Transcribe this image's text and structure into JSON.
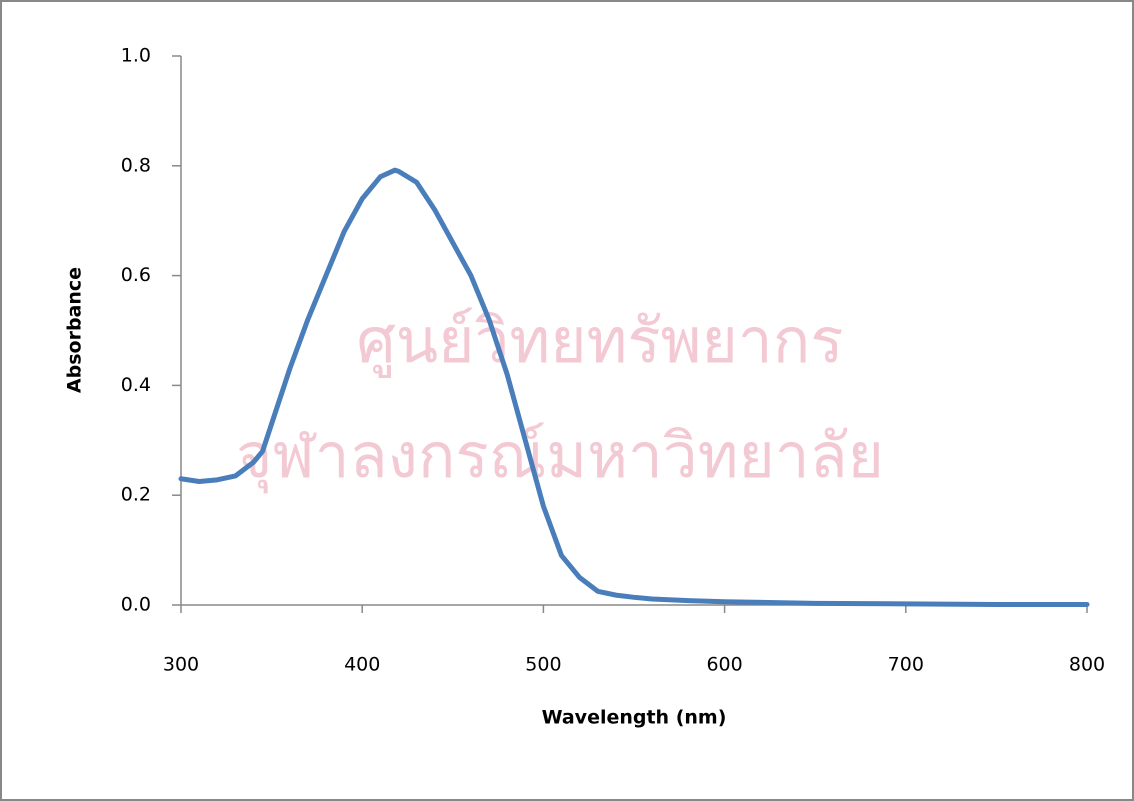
{
  "chart_data": {
    "type": "line",
    "x_label": "Wavelength (nm)",
    "y_label": "Absorbance",
    "watermark": [
      "ศูนย์วิทยทรัพยากร",
      "จุฬาลงกรณ์มหาวิทยาลัย"
    ],
    "x": [
      300,
      310,
      320,
      330,
      340,
      345,
      350,
      360,
      370,
      380,
      390,
      400,
      410,
      418,
      420,
      430,
      440,
      450,
      460,
      470,
      480,
      490,
      500,
      510,
      520,
      530,
      540,
      550,
      560,
      580,
      600,
      650,
      700,
      750,
      800
    ],
    "series": [
      {
        "name": "Absorbance",
        "color": "#4a7ebb",
        "values": [
          0.23,
          0.225,
          0.228,
          0.235,
          0.26,
          0.28,
          0.33,
          0.43,
          0.52,
          0.6,
          0.68,
          0.74,
          0.78,
          0.792,
          0.79,
          0.77,
          0.72,
          0.66,
          0.6,
          0.52,
          0.42,
          0.3,
          0.18,
          0.09,
          0.05,
          0.025,
          0.018,
          0.014,
          0.011,
          0.008,
          0.006,
          0.003,
          0.002,
          0.001,
          0.001
        ]
      }
    ],
    "xlim": [
      300,
      800
    ],
    "xticks": [
      300,
      400,
      500,
      600,
      700,
      800
    ],
    "ylim": [
      0,
      1
    ],
    "yticks": [
      {
        "value": 0,
        "label": "0.0"
      },
      {
        "value": 0.2,
        "label": "0.2"
      },
      {
        "value": 0.4,
        "label": "0.4"
      },
      {
        "value": 0.6,
        "label": "0.6"
      },
      {
        "value": 0.8,
        "label": "0.8"
      },
      {
        "value": 1,
        "label": "1.0"
      }
    ],
    "grid": false
  }
}
